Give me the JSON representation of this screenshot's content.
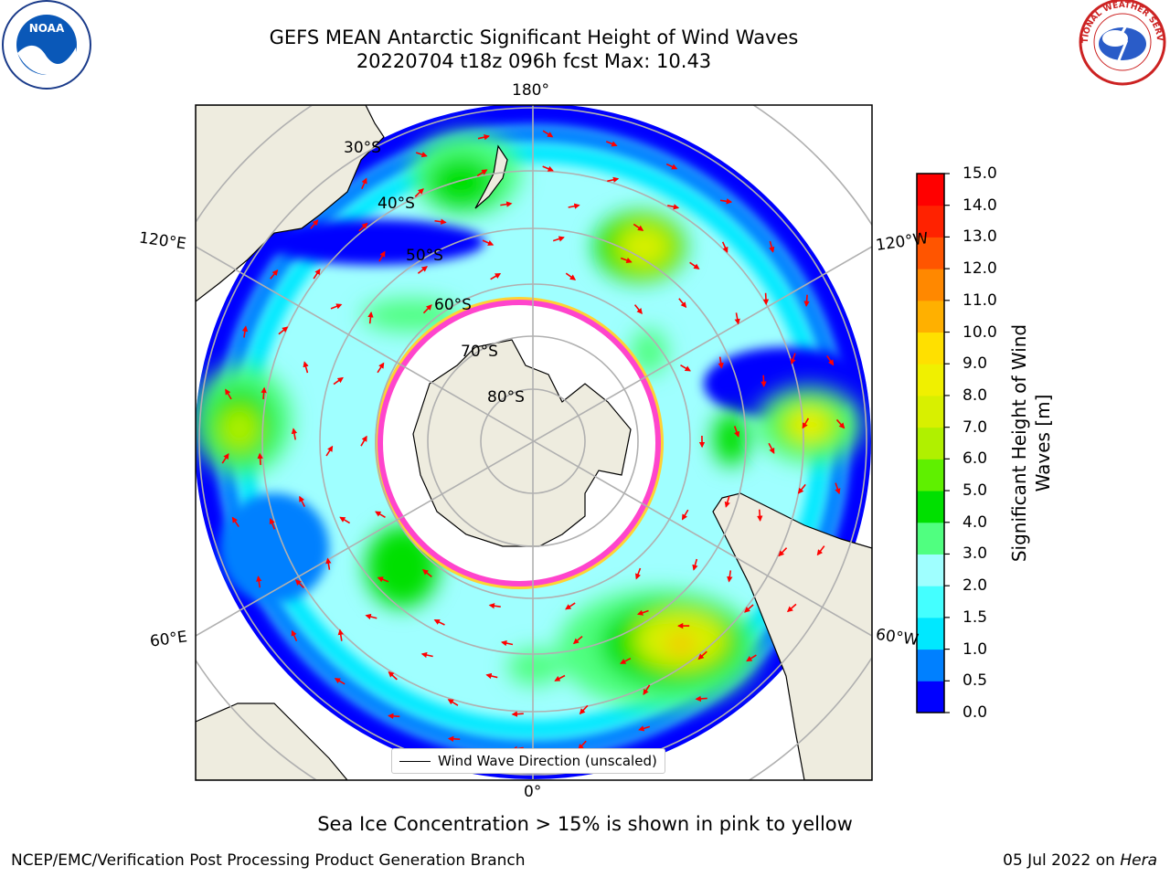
{
  "title": {
    "line1": "GEFS MEAN Antarctic Significant Height of Wind Waves",
    "line2": "20220704 t18z 096h fcst   Max: 10.43"
  },
  "logos": {
    "noaa": "NOAA",
    "nws_text": "NATIONAL WEATHER SERVICE"
  },
  "map": {
    "projection": "south-polar-stereographic",
    "meridian_labels": [
      "180°",
      "120°E",
      "120°W",
      "60°E",
      "60°W",
      "0°"
    ],
    "latitude_labels": [
      "30°S",
      "40°S",
      "50°S",
      "60°S",
      "70°S",
      "80°S"
    ],
    "legend_label": "Wind Wave Direction (unscaled)",
    "arrow_color": "#ff0000",
    "land_color": "#eeecdf",
    "ice_colors": [
      "#ff44cc",
      "#ffd233"
    ]
  },
  "colorbar": {
    "label": "Significant Height of Wind Waves [m]",
    "ticks": [
      "0.0",
      "0.5",
      "1.0",
      "1.5",
      "2.0",
      "3.0",
      "4.0",
      "5.0",
      "6.0",
      "7.0",
      "8.0",
      "9.0",
      "10.0",
      "11.0",
      "12.0",
      "13.0",
      "14.0",
      "15.0"
    ],
    "colors": [
      "#0000ff",
      "#0080ff",
      "#00e8ff",
      "#44ffff",
      "#9fffff",
      "#50ff80",
      "#00e000",
      "#5ff000",
      "#b0f000",
      "#d8f000",
      "#f0f000",
      "#ffe000",
      "#ffb000",
      "#ff8800",
      "#ff5500",
      "#ff2200",
      "#ff0000"
    ]
  },
  "chart_data": {
    "type": "heatmap",
    "variable": "Significant Height of Wind Waves",
    "units": "m",
    "max_value": 10.43,
    "init": "20220704 t18z",
    "forecast_hour": "096h"
  },
  "footer": {
    "caption": "Sea Ice Concentration > 15% is shown in pink to yellow",
    "left": "NCEP/EMC/Verification Post Processing Product Generation Branch",
    "date": "05 Jul 2022 on ",
    "machine": "Hera"
  }
}
